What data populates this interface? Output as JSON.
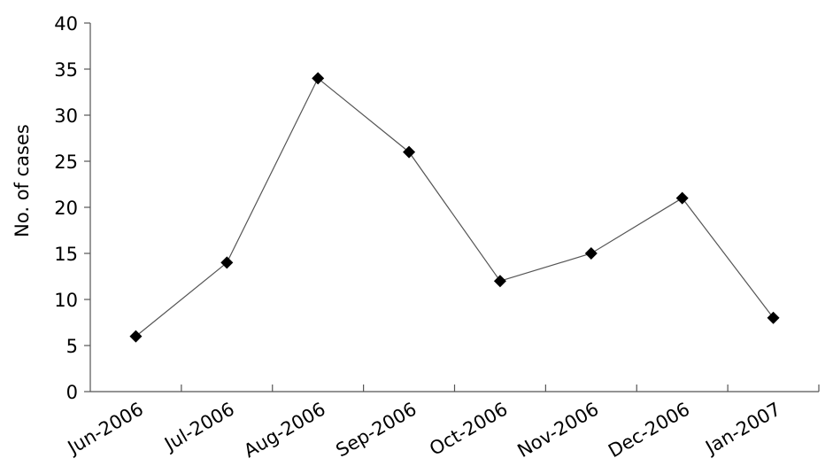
{
  "chart_data": {
    "type": "line",
    "y_label": "No. of cases",
    "categories": [
      "Jun-2006",
      "Jul-2006",
      "Aug-2006",
      "Sep-2006",
      "Oct-2006",
      "Nov-2006",
      "Dec-2006",
      "Jan-2007"
    ],
    "values": [
      6,
      14,
      34,
      26,
      12,
      15,
      21,
      8
    ],
    "color": "#000000",
    "ylim": [
      0,
      40
    ],
    "yticks": [
      0,
      5,
      10,
      15,
      20,
      25,
      30,
      35,
      40
    ],
    "grid": false
  }
}
